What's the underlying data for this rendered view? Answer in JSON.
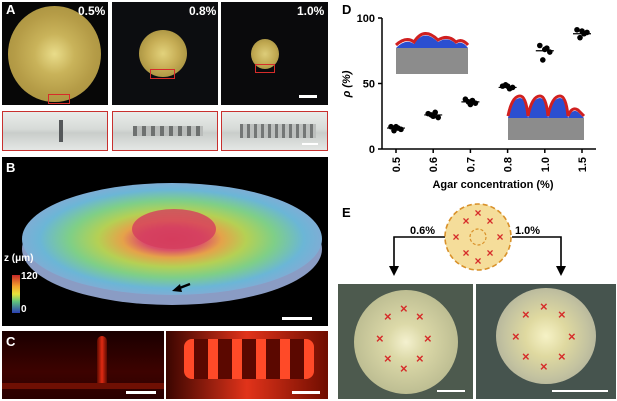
{
  "panels": {
    "A": {
      "letter": "A",
      "concentrations": [
        "0.5%",
        "0.8%",
        "1.0%"
      ]
    },
    "B": {
      "letter": "B",
      "colorbar_label": "z (μm)",
      "colorbar_max": "120",
      "colorbar_min": "0"
    },
    "C": {
      "letter": "C"
    },
    "D": {
      "letter": "D"
    },
    "E": {
      "letter": "E",
      "left_label": "0.6%",
      "right_label": "1.0%",
      "marker_glyph": "×"
    }
  },
  "colors": {
    "marker_red": "#d62c2a",
    "dot_fill": "#f5dd9a",
    "dot_border": "#d9912a"
  },
  "chart_data": {
    "type": "scatter",
    "title": "",
    "xlabel": "Agar concentration (%)",
    "ylabel": "ρ (%)",
    "categories": [
      "0.5",
      "0.6",
      "0.7",
      "0.8",
      "1.0",
      "1.5"
    ],
    "ylim": [
      0,
      100
    ],
    "yticks": [
      0,
      50,
      100
    ],
    "points": [
      [
        17,
        15,
        14,
        16,
        17
      ],
      [
        27,
        24,
        26,
        28,
        25
      ],
      [
        38,
        35,
        36,
        37,
        34
      ],
      [
        48,
        47,
        49,
        46,
        48
      ],
      [
        79,
        74,
        68,
        77,
        76
      ],
      [
        91,
        89,
        85,
        88,
        90
      ]
    ],
    "means": [
      16,
      26,
      36,
      47,
      75,
      88
    ],
    "grid": false
  }
}
